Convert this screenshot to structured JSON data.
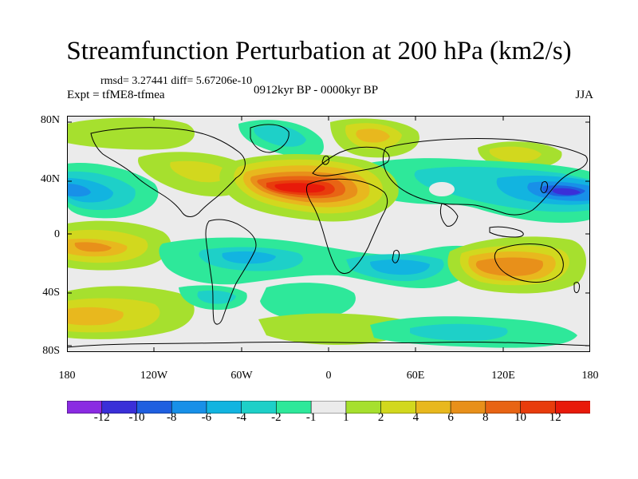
{
  "title": "Streamfunction Perturbation at 200 hPa (km2/s)",
  "stats_line": "rmsd= 3.27441 diff= 5.67206e-10",
  "experiment": "Expt = tfME8-tfmea",
  "period": "0912kyr BP - 0000kyr BP",
  "season": "JJA",
  "lat_ticks": [
    "80N",
    "40N",
    "0",
    "40S",
    "80S"
  ],
  "lon_ticks": [
    "180",
    "120W",
    "60W",
    "0",
    "60E",
    "120E",
    "180"
  ],
  "colorbar": {
    "labels": [
      "-12",
      "-10",
      "-8",
      "-6",
      "-4",
      "-2",
      "-1",
      "1",
      "2",
      "4",
      "6",
      "8",
      "10",
      "12"
    ],
    "colors": [
      "#8a2be2",
      "#3a2fd8",
      "#1f5fe0",
      "#1890e8",
      "#12b4e0",
      "#1ed0c8",
      "#2ee89a",
      "#ebebeb",
      "#a6e02e",
      "#d2d81e",
      "#e8b81e",
      "#e8901a",
      "#e86414",
      "#e83c0c",
      "#e81a0a"
    ]
  },
  "map_data": {
    "type": "filled-contour",
    "projection": "cylindrical-equidistant",
    "lon_range": [
      -180,
      180
    ],
    "lat_range": [
      -90,
      90
    ],
    "features": [
      {
        "name": "saharan-atlantic-high",
        "lon": -15,
        "lat": 28,
        "value": 12
      },
      {
        "name": "west-pacific-low",
        "lon": 160,
        "lat": 30,
        "value": -10
      },
      {
        "name": "east-pacific-low",
        "lon": -175,
        "lat": 30,
        "value": -7
      },
      {
        "name": "australia-high",
        "lon": 125,
        "lat": -28,
        "value": 8
      },
      {
        "name": "south-pacific-high",
        "lon": -150,
        "lat": -18,
        "value": 6
      },
      {
        "name": "southern-ocean-high-west",
        "lon": -160,
        "lat": -62,
        "value": 4
      },
      {
        "name": "indian-ocean-low",
        "lon": 50,
        "lat": -25,
        "value": -5
      },
      {
        "name": "south-atlantic-low",
        "lon": -30,
        "lat": -15,
        "value": -4
      },
      {
        "name": "asia-low-band",
        "lon": 90,
        "lat": 40,
        "value": -4
      },
      {
        "name": "arctic-high-europe",
        "lon": 30,
        "lat": 75,
        "value": 4
      },
      {
        "name": "arctic-low-canada",
        "lon": -60,
        "lat": 78,
        "value": -3
      }
    ]
  }
}
